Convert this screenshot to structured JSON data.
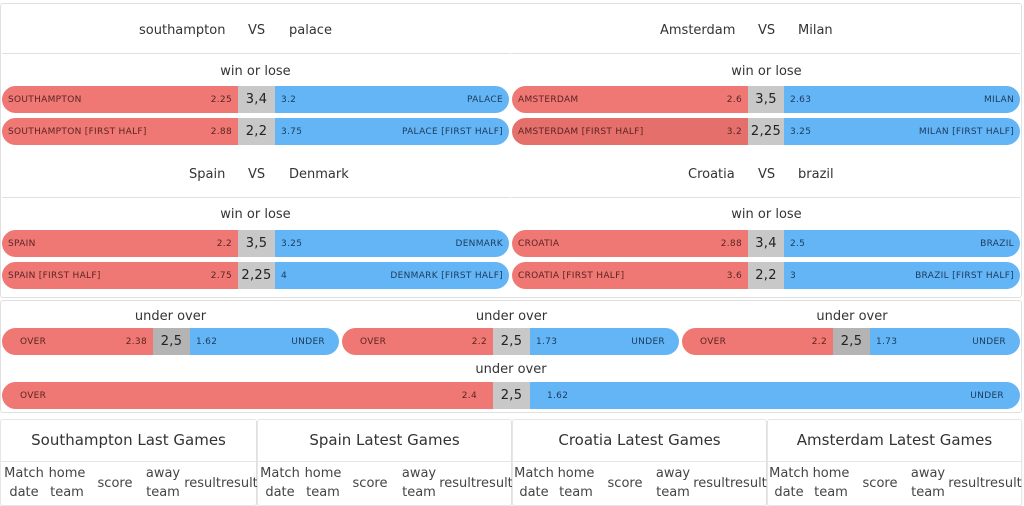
{
  "matches": [
    {
      "home": "southampton",
      "vs": "VS",
      "away": "palace",
      "section": "win or lose",
      "rows": [
        {
          "home_label": "SOUTHAMPTON",
          "home_odd": "2.25",
          "mid": "3,4",
          "away_odd": "3.2",
          "away_label": "PALACE"
        },
        {
          "home_label": "SOUTHAMPTON [FIRST HALF]",
          "home_odd": "2.88",
          "mid": "2,2",
          "away_odd": "3.75",
          "away_label": "PALACE [FIRST HALF]"
        }
      ]
    },
    {
      "home": "Amsterdam",
      "vs": "VS",
      "away": "Milan",
      "section": "win or lose",
      "rows": [
        {
          "home_label": "AMSTERDAM",
          "home_odd": "2.6",
          "mid": "3,5",
          "away_odd": "2.63",
          "away_label": "MILAN"
        },
        {
          "home_label": "AMSTERDAM [FIRST HALF]",
          "home_odd": "3.2",
          "mid": "2,25",
          "away_odd": "3.25",
          "away_label": "MILAN [FIRST HALF]"
        }
      ]
    },
    {
      "home": "Spain",
      "vs": "VS",
      "away": "Denmark",
      "section": "win or lose",
      "rows": [
        {
          "home_label": "SPAIN",
          "home_odd": "2.2",
          "mid": "3,5",
          "away_odd": "3.25",
          "away_label": "DENMARK"
        },
        {
          "home_label": "SPAIN [FIRST HALF]",
          "home_odd": "2.75",
          "mid": "2,25",
          "away_odd": "4",
          "away_label": "DENMARK [FIRST HALF]"
        }
      ]
    },
    {
      "home": "Croatia",
      "vs": "VS",
      "away": "brazil",
      "section": "win or lose",
      "rows": [
        {
          "home_label": "CROATIA",
          "home_odd": "2.88",
          "mid": "3,4",
          "away_odd": "2.5",
          "away_label": "BRAZIL"
        },
        {
          "home_label": "CROATIA [FIRST HALF]",
          "home_odd": "3.6",
          "mid": "2,2",
          "away_odd": "3",
          "away_label": "BRAZIL [FIRST HALF]"
        }
      ]
    }
  ],
  "under_over": [
    {
      "section": "under over",
      "over_label": "OVER",
      "over_odd": "2.38",
      "mid": "2,5",
      "under_odd": "1.62",
      "under_label": "UNDER"
    },
    {
      "section": "under over",
      "over_label": "OVER",
      "over_odd": "2.2",
      "mid": "2,5",
      "under_odd": "1.73",
      "under_label": "UNDER"
    },
    {
      "section": "under over",
      "over_label": "OVER",
      "over_odd": "2.2",
      "mid": "2,5",
      "under_odd": "1.73",
      "under_label": "UNDER"
    },
    {
      "section": "under over",
      "over_label": "OVER",
      "over_odd": "2.4",
      "mid": "2,5",
      "under_odd": "1.62",
      "under_label": "UNDER"
    }
  ],
  "last_games": [
    {
      "title": "Southampton Last Games"
    },
    {
      "title": "Spain Latest Games"
    },
    {
      "title": "Croatia Latest Games"
    },
    {
      "title": "Amsterdam Latest Games"
    }
  ],
  "last_games_headers": {
    "match_date_1": "Match",
    "match_date_2": "date",
    "home_team_1": "home",
    "home_team_2": "team",
    "score": "score",
    "away_team_1": "away",
    "away_team_2": "team",
    "result": "resultresult"
  },
  "colors": {
    "home_bar": "#f07874",
    "mid_bar": "#c8c8c8",
    "away_bar": "#64b5f6"
  }
}
